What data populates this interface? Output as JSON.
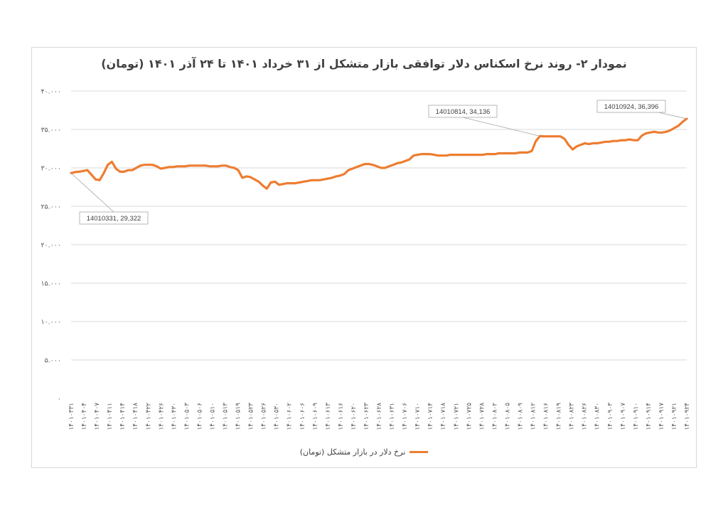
{
  "chart_data": {
    "type": "line",
    "title": "نمودار ۲- روند نرخ اسکناس دلار توافقی بازار متشکل از ۳۱ خرداد ۱۴۰۱ تا ۲۴ آذر ۱۴۰۱ (تومان)",
    "xlabel": "",
    "ylabel": "",
    "ylim": [
      0,
      40000
    ],
    "y_ticks": [
      "۰",
      "۵.۰۰۰",
      "۱۰.۰۰۰",
      "۱۵.۰۰۰",
      "۲۰.۰۰۰",
      "۲۵.۰۰۰",
      "۳۰.۰۰۰",
      "۳۵.۰۰۰",
      "۴۰.۰۰۰"
    ],
    "x_ticks": [
      "۱۴۰۱۰۳۳۱",
      "۱۴۰۱۰۴۰۴",
      "۱۴۰۱۰۴۰۷",
      "۱۴۰۱۰۴۱۱",
      "۱۴۰۱۰۴۱۴",
      "۱۴۰۱۰۴۱۸",
      "۱۴۰۱۰۴۲۲",
      "۱۴۰۱۰۴۲۶",
      "۱۴۰۱۰۴۳۰",
      "۱۴۰۱۰۵۰۳",
      "۱۴۰۱۰۵۰۶",
      "۱۴۰۱۰۵۱۰",
      "۱۴۰۱۰۵۱۳",
      "۱۴۰۱۰۵۱۹",
      "۱۴۰۱۰۵۲۳",
      "۱۴۰۱۰۵۲۶",
      "۱۴۰۱۰۵۳۰",
      "۱۴۰۱۰۶۰۲",
      "۱۴۰۱۰۶۰۶",
      "۱۴۰۱۰۶۰۹",
      "۱۴۰۱۰۶۱۳",
      "۱۴۰۱۰۶۱۶",
      "۱۴۰۱۰۶۲۰",
      "۱۴۰۱۰۶۲۳",
      "۱۴۰۱۰۶۲۸",
      "۱۴۰۱۰۶۳۱",
      "۱۴۰۱۰۷۰۶",
      "۱۴۰۱۰۷۱۰",
      "۱۴۰۱۰۷۱۴",
      "۱۴۰۱۰۷۱۸",
      "۱۴۰۱۰۷۲۱",
      "۱۴۰۱۰۷۲۵",
      "۱۴۰۱۰۷۲۸",
      "۱۴۰۱۰۸۰۲",
      "۱۴۰۱۰۸۰۵",
      "۱۴۰۱۰۸۰۹",
      "۱۴۰۱۰۸۱۲",
      "۱۴۰۱۰۸۱۶",
      "۱۴۰۱۰۸۱۹",
      "۱۴۰۱۰۸۲۳",
      "۱۴۰۱۰۸۲۶",
      "۱۴۰۱۰۸۳۰",
      "۱۴۰۱۰۹۰۳",
      "۱۴۰۱۰۹۰۷",
      "۱۴۰۱۰۹۱۰",
      "۱۴۰۱۰۹۱۴",
      "۱۴۰۱۰۹۱۷",
      "۱۴۰۱۰۹۲۱",
      "۱۴۰۱۰۹۲۴"
    ],
    "series": [
      {
        "name": "نرخ دلار در بازار متشکل (تومان)",
        "color": "#ED7D31",
        "values": [
          29322,
          29450,
          29500,
          29600,
          29700,
          29100,
          28500,
          28400,
          29300,
          30400,
          30800,
          29900,
          29500,
          29500,
          29700,
          29700,
          30000,
          30300,
          30400,
          30400,
          30400,
          30200,
          29900,
          30000,
          30100,
          30100,
          30200,
          30200,
          30200,
          30300,
          30300,
          30300,
          30300,
          30300,
          30200,
          30200,
          30200,
          30300,
          30300,
          30100,
          30000,
          29700,
          28700,
          28900,
          28800,
          28500,
          28200,
          27700,
          27300,
          28100,
          28200,
          27800,
          27900,
          28000,
          28000,
          28000,
          28100,
          28200,
          28300,
          28400,
          28400,
          28400,
          28500,
          28600,
          28700,
          28900,
          29000,
          29200,
          29700,
          29900,
          30100,
          30300,
          30500,
          30500,
          30400,
          30200,
          30000,
          30000,
          30200,
          30400,
          30600,
          30700,
          30900,
          31100,
          31600,
          31700,
          31800,
          31800,
          31800,
          31700,
          31600,
          31600,
          31600,
          31700,
          31700,
          31700,
          31700,
          31700,
          31700,
          31700,
          31700,
          31700,
          31800,
          31800,
          31800,
          31900,
          31900,
          31900,
          31900,
          31900,
          32000,
          32000,
          32000,
          32200,
          33500,
          34136,
          34100,
          34100,
          34100,
          34100,
          34100,
          33800,
          33000,
          32400,
          32800,
          33000,
          33200,
          33100,
          33200,
          33200,
          33300,
          33400,
          33400,
          33500,
          33500,
          33600,
          33600,
          33700,
          33600,
          33600,
          34200,
          34500,
          34600,
          34700,
          34600,
          34600,
          34700,
          34900,
          35200,
          35500,
          36000,
          36396
        ]
      }
    ],
    "annotations": [
      {
        "text": "14010331, 29,322"
      },
      {
        "text": "14010814, 34,136"
      },
      {
        "text": "14010924, 36,396"
      }
    ],
    "grid": "horizontal",
    "legend": "bottom"
  }
}
